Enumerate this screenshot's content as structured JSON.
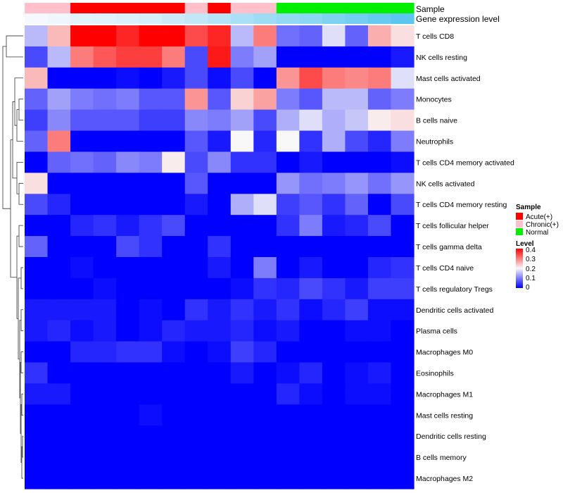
{
  "chart_data": {
    "type": "heatmap",
    "annotation_rows": [
      {
        "name": "Sample",
        "values": [
          "Chronic(+)",
          "Chronic(+)",
          "Acute(+)",
          "Acute(+)",
          "Acute(+)",
          "Acute(+)",
          "Acute(+)",
          "Chronic(+)",
          "Acute(+)",
          "Chronic(+)",
          "Chronic(+)",
          "Normal",
          "Normal",
          "Normal",
          "Normal",
          "Normal",
          "Normal"
        ]
      },
      {
        "name": "Gene expression level",
        "values": [
          0.01,
          0.03,
          0.07,
          0.08,
          0.1,
          0.12,
          0.15,
          0.18,
          0.22,
          0.26,
          0.3,
          0.33,
          0.36,
          0.4,
          0.44,
          0.48,
          0.52
        ]
      }
    ],
    "rows": [
      "T cells CD8",
      "NK cells resting",
      "Mast cells activated",
      "Monocytes",
      "B cells naive",
      "Neutrophils",
      "T cells CD4 memory activated",
      "NK cells activated",
      "T cells CD4 memory resting",
      "T cells follicular helper",
      "T cells gamma delta",
      "T cells CD4 naive",
      "T cells regulatory  Tregs",
      "Dendritic cells activated",
      "Plasma cells",
      "Macrophages M0",
      "Eosinophils",
      "Macrophages M1",
      "Mast cells resting",
      "Dendritic cells resting",
      "B cells memory",
      "Macrophages M2"
    ],
    "values": [
      [
        0.15,
        0.25,
        0.4,
        0.4,
        0.37,
        0.4,
        0.4,
        0.34,
        0.37,
        0.15,
        0.3,
        0.09,
        0.08,
        0.18,
        0.08,
        0.26,
        0.22
      ],
      [
        0.06,
        0.15,
        0.3,
        0.33,
        0.35,
        0.35,
        0.3,
        0.06,
        0.38,
        0.1,
        0.13,
        0.0,
        0.0,
        0.0,
        0.0,
        0.0,
        0.02
      ],
      [
        0.25,
        0.0,
        0.0,
        0.0,
        0.01,
        0.0,
        0.02,
        0.06,
        0.01,
        0.06,
        0.0,
        0.28,
        0.34,
        0.3,
        0.29,
        0.3,
        0.18
      ],
      [
        0.08,
        0.13,
        0.1,
        0.09,
        0.1,
        0.07,
        0.07,
        0.28,
        0.07,
        0.23,
        0.27,
        0.1,
        0.07,
        0.15,
        0.15,
        0.08,
        0.1
      ],
      [
        0.05,
        0.11,
        0.07,
        0.07,
        0.07,
        0.05,
        0.05,
        0.11,
        0.1,
        0.13,
        0.06,
        0.14,
        0.18,
        0.14,
        0.16,
        0.21,
        0.22
      ],
      [
        0.08,
        0.3,
        0.0,
        0.0,
        0.0,
        0.0,
        0.0,
        0.07,
        0.02,
        0.2,
        0.03,
        0.2,
        0.04,
        0.14,
        0.06,
        0.03,
        0.1
      ],
      [
        0.0,
        0.08,
        0.09,
        0.08,
        0.11,
        0.1,
        0.21,
        0.06,
        0.11,
        0.04,
        0.04,
        0.0,
        0.02,
        0.0,
        0.0,
        0.0,
        0.01
      ],
      [
        0.22,
        0.0,
        0.0,
        0.0,
        0.0,
        0.0,
        0.0,
        0.07,
        0.0,
        0.0,
        0.0,
        0.12,
        0.09,
        0.1,
        0.12,
        0.09,
        0.12
      ],
      [
        0.06,
        0.03,
        0.0,
        0.0,
        0.0,
        0.0,
        0.0,
        0.02,
        0.0,
        0.14,
        0.18,
        0.05,
        0.07,
        0.04,
        0.08,
        0.0,
        0.06
      ],
      [
        0.0,
        0.0,
        0.03,
        0.04,
        0.02,
        0.04,
        0.06,
        0.0,
        0.0,
        0.0,
        0.0,
        0.04,
        0.1,
        0.02,
        0.03,
        0.06,
        0.0
      ],
      [
        0.08,
        0.0,
        0.0,
        0.0,
        0.06,
        0.04,
        0.0,
        0.0,
        0.04,
        0.0,
        0.0,
        0.0,
        0.0,
        0.0,
        0.0,
        0.0,
        0.0
      ],
      [
        0.0,
        0.0,
        0.01,
        0.0,
        0.0,
        0.0,
        0.0,
        0.0,
        0.02,
        0.0,
        0.1,
        0.0,
        0.02,
        0.0,
        0.0,
        0.03,
        0.04
      ],
      [
        0.0,
        0.0,
        0.0,
        0.01,
        0.0,
        0.0,
        0.0,
        0.0,
        0.0,
        0.01,
        0.04,
        0.03,
        0.06,
        0.04,
        0.02,
        0.05,
        0.05
      ],
      [
        0.02,
        0.02,
        0.02,
        0.02,
        0.0,
        0.01,
        0.0,
        0.04,
        0.02,
        0.04,
        0.02,
        0.04,
        0.01,
        0.03,
        0.05,
        0.01,
        0.01
      ],
      [
        0.02,
        0.03,
        0.01,
        0.02,
        0.0,
        0.01,
        0.03,
        0.02,
        0.02,
        0.03,
        0.01,
        0.02,
        0.0,
        0.0,
        0.01,
        0.01,
        0.0
      ],
      [
        0.0,
        0.0,
        0.03,
        0.03,
        0.04,
        0.04,
        0.01,
        0.0,
        0.01,
        0.05,
        0.03,
        0.0,
        0.0,
        0.0,
        0.0,
        0.0,
        0.0
      ],
      [
        0.04,
        0.0,
        0.0,
        0.0,
        0.0,
        0.0,
        0.0,
        0.0,
        0.0,
        0.02,
        0.0,
        0.01,
        0.03,
        0.0,
        0.01,
        0.02,
        0.0
      ],
      [
        0.02,
        0.02,
        0.0,
        0.0,
        0.0,
        0.0,
        0.0,
        0.0,
        0.0,
        0.0,
        0.0,
        0.03,
        0.01,
        0.0,
        0.01,
        0.01,
        0.0
      ],
      [
        0.0,
        0.0,
        0.0,
        0.0,
        0.0,
        0.01,
        0.0,
        0.0,
        0.0,
        0.0,
        0.0,
        0.0,
        0.0,
        0.0,
        0.0,
        0.0,
        0.0
      ],
      [
        0.0,
        0.0,
        0.0,
        0.0,
        0.0,
        0.0,
        0.0,
        0.0,
        0.0,
        0.0,
        0.0,
        0.0,
        0.0,
        0.0,
        0.0,
        0.0,
        0.0
      ],
      [
        0.0,
        0.0,
        0.0,
        0.0,
        0.0,
        0.0,
        0.0,
        0.0,
        0.0,
        0.0,
        0.0,
        0.0,
        0.0,
        0.0,
        0.0,
        0.0,
        0.0
      ],
      [
        0.0,
        0.0,
        0.0,
        0.0,
        0.0,
        0.0,
        0.0,
        0.0,
        0.0,
        0.0,
        0.0,
        0.0,
        0.0,
        0.0,
        0.0,
        0.0,
        0.0
      ]
    ],
    "color_scale": {
      "min": 0,
      "max": 0.4,
      "low": "#0000FF",
      "mid": "#F8F8F8",
      "high": "#FF0000"
    },
    "row_dendrogram": true,
    "legend": {
      "placement": "right",
      "sample": {
        "title": "Sample",
        "items": [
          {
            "label": "Acute(+)",
            "color": "#FF0000"
          },
          {
            "label": "Chronic(+)",
            "color": "#FFC0CB"
          },
          {
            "label": "Normal",
            "color": "#00EE00"
          }
        ]
      },
      "level": {
        "title": "Level",
        "ticks": [
          "0.4",
          "0.3",
          "0.2",
          "0.1",
          "0"
        ]
      }
    },
    "annotation_colors": {
      "Gene expression level": {
        "low": "#F5F9FD",
        "high": "#5BC6EF"
      }
    }
  }
}
